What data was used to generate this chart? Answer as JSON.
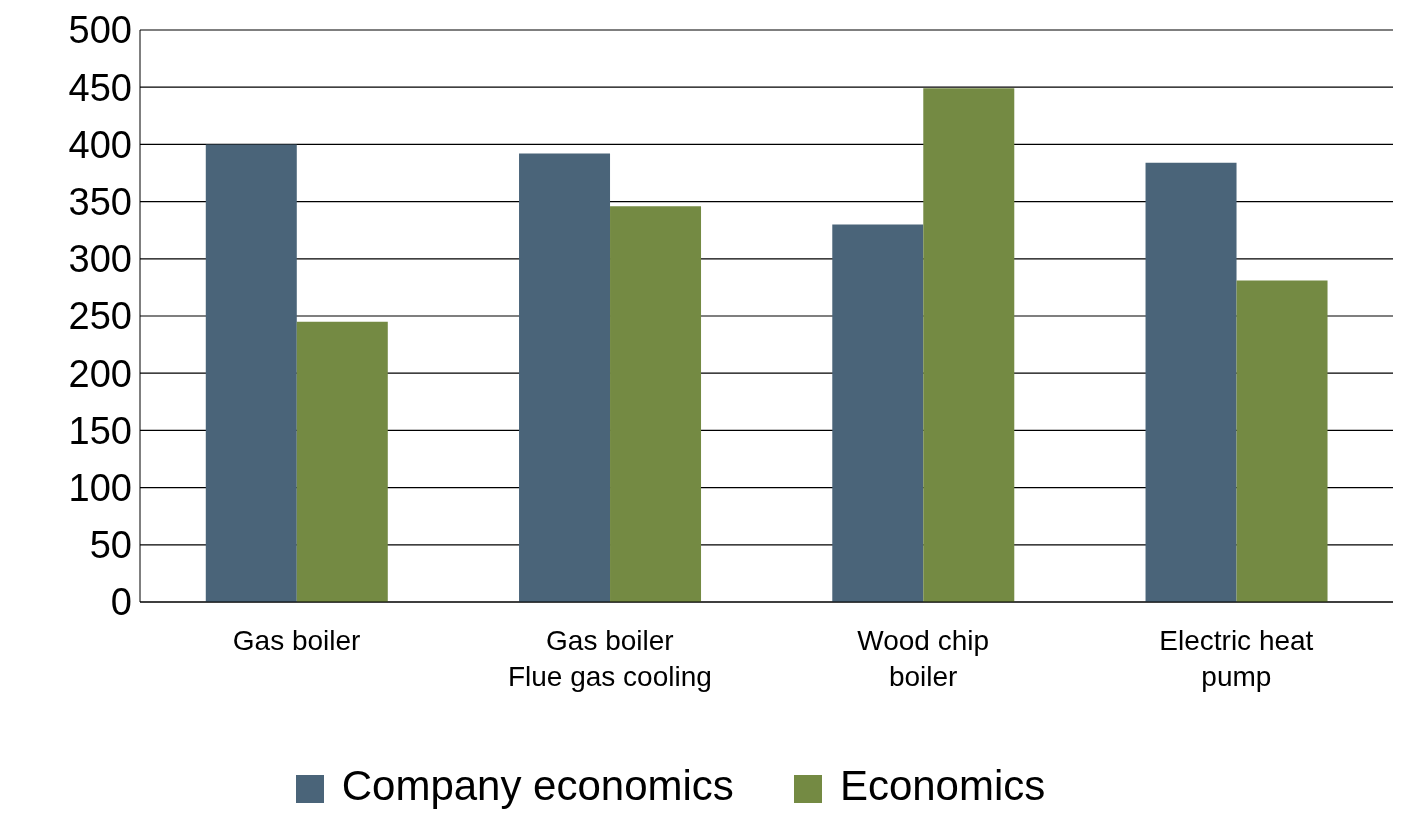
{
  "chart_data": {
    "type": "bar",
    "categories": [
      "Gas boiler",
      "Gas boiler\nFlue gas cooling",
      "Wood chip\nboiler",
      "Electric heat\npump"
    ],
    "series": [
      {
        "name": "Company economics",
        "color": "#4a6479",
        "values": [
          400,
          392,
          330,
          384
        ]
      },
      {
        "name": "Economics",
        "color": "#748a43",
        "values": [
          245,
          346,
          449,
          281
        ]
      }
    ],
    "ylim": [
      0,
      500
    ],
    "yticks": [
      0,
      50,
      100,
      150,
      200,
      250,
      300,
      350,
      400,
      450,
      500
    ],
    "grid": "y",
    "legend": "bottom"
  }
}
